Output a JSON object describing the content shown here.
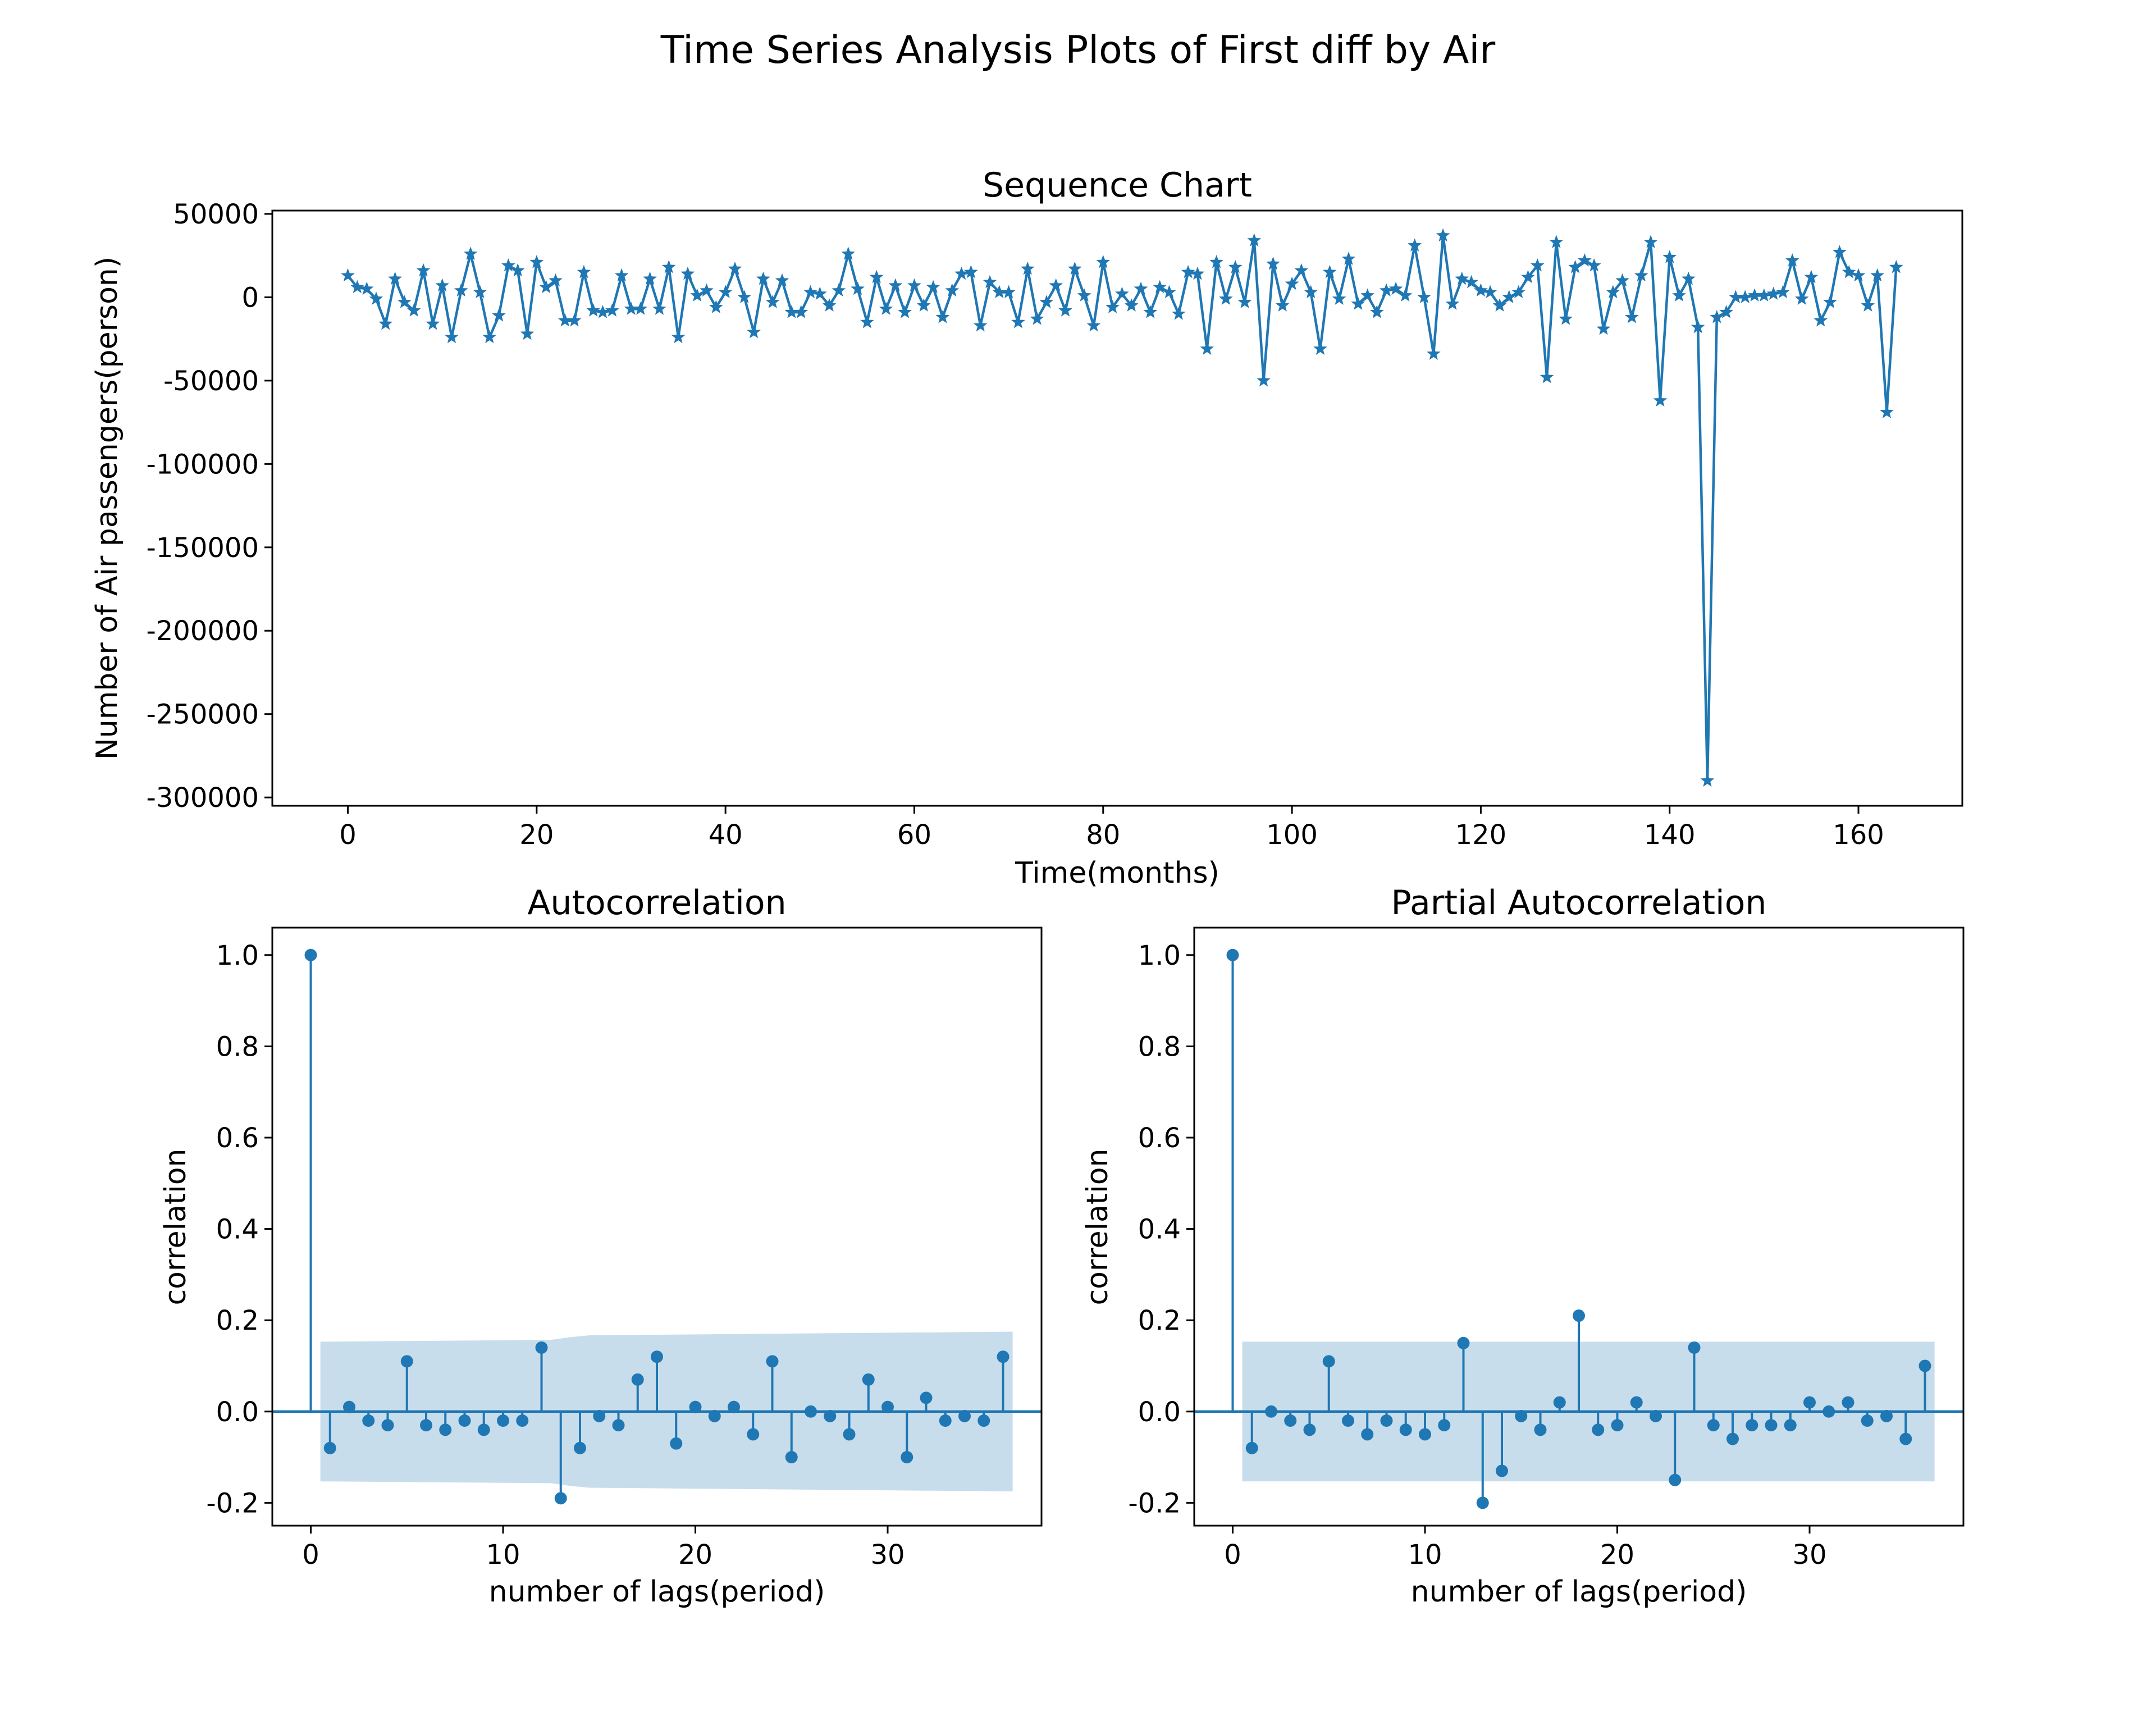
{
  "figure": {
    "suptitle": "Time Series Analysis Plots of First diff by Air",
    "line_color": "#1f77b4",
    "band_color": "#1f77b4"
  },
  "chart_data": [
    {
      "type": "line",
      "title": "Sequence Chart",
      "xlabel": "Time(months)",
      "ylabel": "Number of Air passengers(person)",
      "marker": "star",
      "xlim": [
        -8,
        171
      ],
      "ylim": [
        -305000,
        52000
      ],
      "xticks": [
        0,
        20,
        40,
        60,
        80,
        100,
        120,
        140,
        160
      ],
      "yticks": [
        50000,
        0,
        -50000,
        -100000,
        -150000,
        -200000,
        -250000,
        -300000
      ],
      "x_start": 0,
      "y": [
        13000,
        6000,
        5000,
        -1000,
        -16000,
        11000,
        -3000,
        -8000,
        16000,
        -16000,
        7000,
        -24000,
        4000,
        26000,
        3000,
        -24000,
        -11000,
        19000,
        16000,
        -22000,
        21000,
        6000,
        10000,
        -14000,
        -14000,
        15000,
        -8000,
        -9000,
        -8000,
        13000,
        -7000,
        -7000,
        11000,
        -7000,
        18000,
        -24000,
        14000,
        1000,
        4000,
        -6000,
        3000,
        17000,
        0,
        -21000,
        11000,
        -3000,
        10000,
        -9000,
        -9000,
        3000,
        2000,
        -5000,
        4000,
        26000,
        5000,
        -15000,
        12000,
        -7000,
        7000,
        -9000,
        7000,
        -5000,
        6000,
        -12000,
        4000,
        14000,
        15000,
        -17000,
        9000,
        3000,
        3000,
        -15000,
        17000,
        -13000,
        -3000,
        7000,
        -8000,
        17000,
        1000,
        -17000,
        21000,
        -6000,
        2000,
        -5000,
        5000,
        -9000,
        6000,
        3000,
        -10000,
        15000,
        14000,
        -31000,
        21000,
        -1000,
        18000,
        -3000,
        34000,
        -50000,
        20000,
        -5000,
        8000,
        16000,
        3000,
        -31000,
        15000,
        -1000,
        23000,
        -4000,
        1000,
        -9000,
        4000,
        5000,
        1000,
        31000,
        0,
        -34000,
        37000,
        -4000,
        11000,
        9000,
        4000,
        3000,
        -5000,
        0,
        3000,
        12000,
        19000,
        -48000,
        33000,
        -13000,
        18000,
        22000,
        19000,
        -19000,
        3000,
        10000,
        -12000,
        13000,
        33000,
        -62000,
        24000,
        1000,
        11000,
        -18000,
        -290000,
        -12000,
        -9000,
        0,
        0,
        1000,
        1000,
        2000,
        3000,
        22000,
        -1000,
        12000,
        -14000,
        -3000,
        27000,
        15000,
        13000,
        -5000,
        13000,
        -69000,
        18000
      ]
    },
    {
      "type": "stem",
      "title": "Autocorrelation",
      "xlabel": "number of lags(period)",
      "ylabel": "correlation",
      "xlim": [
        -2,
        38
      ],
      "ylim": [
        -0.25,
        1.06
      ],
      "xticks": [
        0,
        10,
        20,
        30
      ],
      "yticks": [
        1.0,
        0.8,
        0.6,
        0.4,
        0.2,
        0.0,
        -0.2
      ],
      "ytick_labels": [
        "1.0",
        "0.8",
        "0.6",
        "0.4",
        "0.2",
        "0.0",
        "-0.2"
      ],
      "lags": [
        0,
        1,
        2,
        3,
        4,
        5,
        6,
        7,
        8,
        9,
        10,
        11,
        12,
        13,
        14,
        15,
        16,
        17,
        18,
        19,
        20,
        21,
        22,
        23,
        24,
        25,
        26,
        27,
        28,
        29,
        30,
        31,
        32,
        33,
        34,
        35,
        36
      ],
      "values": [
        1.0,
        -0.08,
        0.01,
        -0.02,
        -0.03,
        0.11,
        -0.03,
        -0.04,
        -0.02,
        -0.04,
        -0.02,
        -0.02,
        0.14,
        -0.19,
        -0.08,
        -0.01,
        -0.03,
        0.07,
        0.12,
        -0.07,
        0.01,
        -0.01,
        0.01,
        -0.05,
        0.11,
        -0.1,
        0.0,
        -0.01,
        -0.05,
        0.07,
        0.01,
        -0.1,
        0.03,
        -0.02,
        -0.01,
        -0.02,
        0.12
      ],
      "confidence_band": {
        "x": [
          0.5,
          12.5,
          13.5,
          14.5,
          36.5
        ],
        "upper": [
          0.153,
          0.157,
          0.163,
          0.167,
          0.175
        ],
        "lower": [
          -0.153,
          -0.157,
          -0.163,
          -0.167,
          -0.175
        ]
      }
    },
    {
      "type": "stem",
      "title": "Partial Autocorrelation",
      "xlabel": "number of lags(period)",
      "ylabel": "correlation",
      "xlim": [
        -2,
        38
      ],
      "ylim": [
        -0.25,
        1.06
      ],
      "xticks": [
        0,
        10,
        20,
        30
      ],
      "yticks": [
        1.0,
        0.8,
        0.6,
        0.4,
        0.2,
        0.0,
        -0.2
      ],
      "ytick_labels": [
        "1.0",
        "0.8",
        "0.6",
        "0.4",
        "0.2",
        "0.0",
        "-0.2"
      ],
      "lags": [
        0,
        1,
        2,
        3,
        4,
        5,
        6,
        7,
        8,
        9,
        10,
        11,
        12,
        13,
        14,
        15,
        16,
        17,
        18,
        19,
        20,
        21,
        22,
        23,
        24,
        25,
        26,
        27,
        28,
        29,
        30,
        31,
        32,
        33,
        34,
        35,
        36
      ],
      "values": [
        1.0,
        -0.08,
        0.0,
        -0.02,
        -0.04,
        0.11,
        -0.02,
        -0.05,
        -0.02,
        -0.04,
        -0.05,
        -0.03,
        0.15,
        -0.2,
        -0.13,
        -0.01,
        -0.04,
        0.02,
        0.21,
        -0.04,
        -0.03,
        0.02,
        -0.01,
        -0.15,
        0.14,
        -0.03,
        -0.06,
        -0.03,
        -0.03,
        -0.03,
        0.02,
        0.0,
        0.02,
        -0.02,
        -0.01,
        -0.06,
        0.1
      ],
      "confidence_band": {
        "x": [
          0.5,
          36.5
        ],
        "upper": [
          0.153,
          0.153
        ],
        "lower": [
          -0.153,
          -0.153
        ]
      }
    }
  ]
}
